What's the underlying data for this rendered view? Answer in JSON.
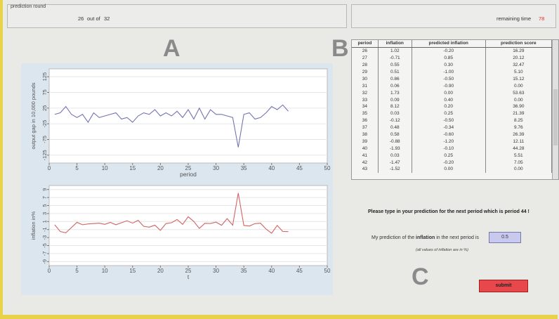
{
  "header": {
    "round_label": "prediction round",
    "round": "26",
    "out_of": "out of",
    "total": "32",
    "time_label": "remaining time",
    "time": "78"
  },
  "letters": {
    "a": "A",
    "b": "B",
    "c": "C"
  },
  "chart_data": [
    {
      "type": "line",
      "y_label": "output gap in 10,000 pounds",
      "x_label": "period",
      "x": [
        1,
        2,
        3,
        4,
        5,
        6,
        7,
        8,
        9,
        10,
        11,
        12,
        13,
        14,
        15,
        16,
        17,
        18,
        19,
        20,
        21,
        22,
        23,
        24,
        25,
        26,
        27,
        28,
        29,
        30,
        31,
        32,
        33,
        34,
        35,
        36,
        37,
        38,
        39,
        40,
        41,
        42,
        43
      ],
      "series": [
        {
          "color": "#7474b4",
          "values": [
            5,
            10,
            30,
            5,
            -5,
            5,
            -20,
            10,
            -5,
            0,
            5,
            10,
            -10,
            -5,
            -20,
            0,
            10,
            5,
            20,
            0,
            10,
            0,
            15,
            -5,
            20,
            -10,
            25,
            -10,
            20,
            5,
            5,
            0,
            -5,
            -100,
            5,
            10,
            -10,
            -5,
            10,
            30,
            20,
            35,
            15
          ]
        }
      ],
      "xlim": [
        0,
        50
      ],
      "xticks": [
        0,
        5,
        10,
        15,
        20,
        25,
        30,
        35,
        40,
        45,
        50
      ],
      "ylim": [
        -150,
        150
      ],
      "yticks": [
        -125,
        -75,
        -25,
        25,
        75,
        125
      ],
      "grid": true
    },
    {
      "type": "line",
      "y_label": "inflation in%",
      "x_label": "t",
      "x": [
        1,
        2,
        3,
        4,
        5,
        6,
        7,
        8,
        9,
        10,
        11,
        12,
        13,
        14,
        15,
        16,
        17,
        18,
        19,
        20,
        21,
        22,
        23,
        24,
        25,
        26,
        27,
        28,
        29,
        30,
        31,
        32,
        33,
        34,
        35,
        36,
        37,
        38,
        39,
        40,
        41,
        42,
        43
      ],
      "series": [
        {
          "color": "#d06464",
          "values": [
            0.2,
            -1.5,
            -1.8,
            -0.5,
            0.8,
            0.2,
            0.4,
            0.5,
            0.6,
            0.3,
            0.8,
            0.2,
            0.7,
            1.2,
            0.6,
            1.3,
            -0.2,
            -0.4,
            0.1,
            -1.2,
            0.5,
            0.7,
            1.5,
            0.3,
            2.2,
            1.02,
            -0.71,
            0.55,
            0.51,
            0.86,
            0.06,
            1.73,
            0.09,
            8.12,
            0.03,
            -0.12,
            0.48,
            0.58,
            -0.88,
            -1.93,
            0.03,
            -1.47,
            -1.52
          ]
        }
      ],
      "xlim": [
        0,
        50
      ],
      "xticks": [
        0,
        5,
        10,
        15,
        20,
        25,
        30,
        35,
        40,
        45,
        50
      ],
      "ylim": [
        -10,
        10
      ],
      "yticks": [
        -9,
        -7,
        -5,
        -3,
        -1,
        1,
        3,
        5,
        7,
        9
      ],
      "grid": true
    }
  ],
  "table": {
    "columns": [
      "period",
      "inflation",
      "predicted inflation",
      "prediction score"
    ],
    "rows": [
      [
        "26",
        "1.02",
        "-0.20",
        "16.29"
      ],
      [
        "27",
        "-0.71",
        "0.85",
        "20.12"
      ],
      [
        "28",
        "0.55",
        "0.30",
        "32.47"
      ],
      [
        "29",
        "0.51",
        "-1.00",
        "5.10"
      ],
      [
        "30",
        "0.86",
        "-0.50",
        "15.12"
      ],
      [
        "31",
        "0.06",
        "-0.90",
        "0.00"
      ],
      [
        "32",
        "1.73",
        "0.00",
        "53.63"
      ],
      [
        "33",
        "0.09",
        "0.40",
        "0.00"
      ],
      [
        "34",
        "8.12",
        "0.20",
        "36.90"
      ],
      [
        "35",
        "0.03",
        "0.25",
        "21.39"
      ],
      [
        "36",
        "-0.12",
        "-0.50",
        "8.25"
      ],
      [
        "37",
        "0.48",
        "-0.34",
        "9.76"
      ],
      [
        "38",
        "0.58",
        "-0.60",
        "26.39"
      ],
      [
        "39",
        "-0.88",
        "-1.20",
        "12.11"
      ],
      [
        "40",
        "-1.93",
        "-0.10",
        "44.28"
      ],
      [
        "41",
        "0.03",
        "0.25",
        "5.51"
      ],
      [
        "42",
        "-1.47",
        "-0.20",
        "7.05"
      ],
      [
        "43",
        "-1.52",
        "0.00",
        "0.00"
      ]
    ]
  },
  "form": {
    "prompt": "Please type in your prediction for the next period which is period 44 !",
    "label_before": "My prediction of the ",
    "label_bold": "inflation",
    "label_after": " in the next period is",
    "input": "0.5",
    "note": "(all values of inflation are in %)",
    "button": "submit"
  }
}
